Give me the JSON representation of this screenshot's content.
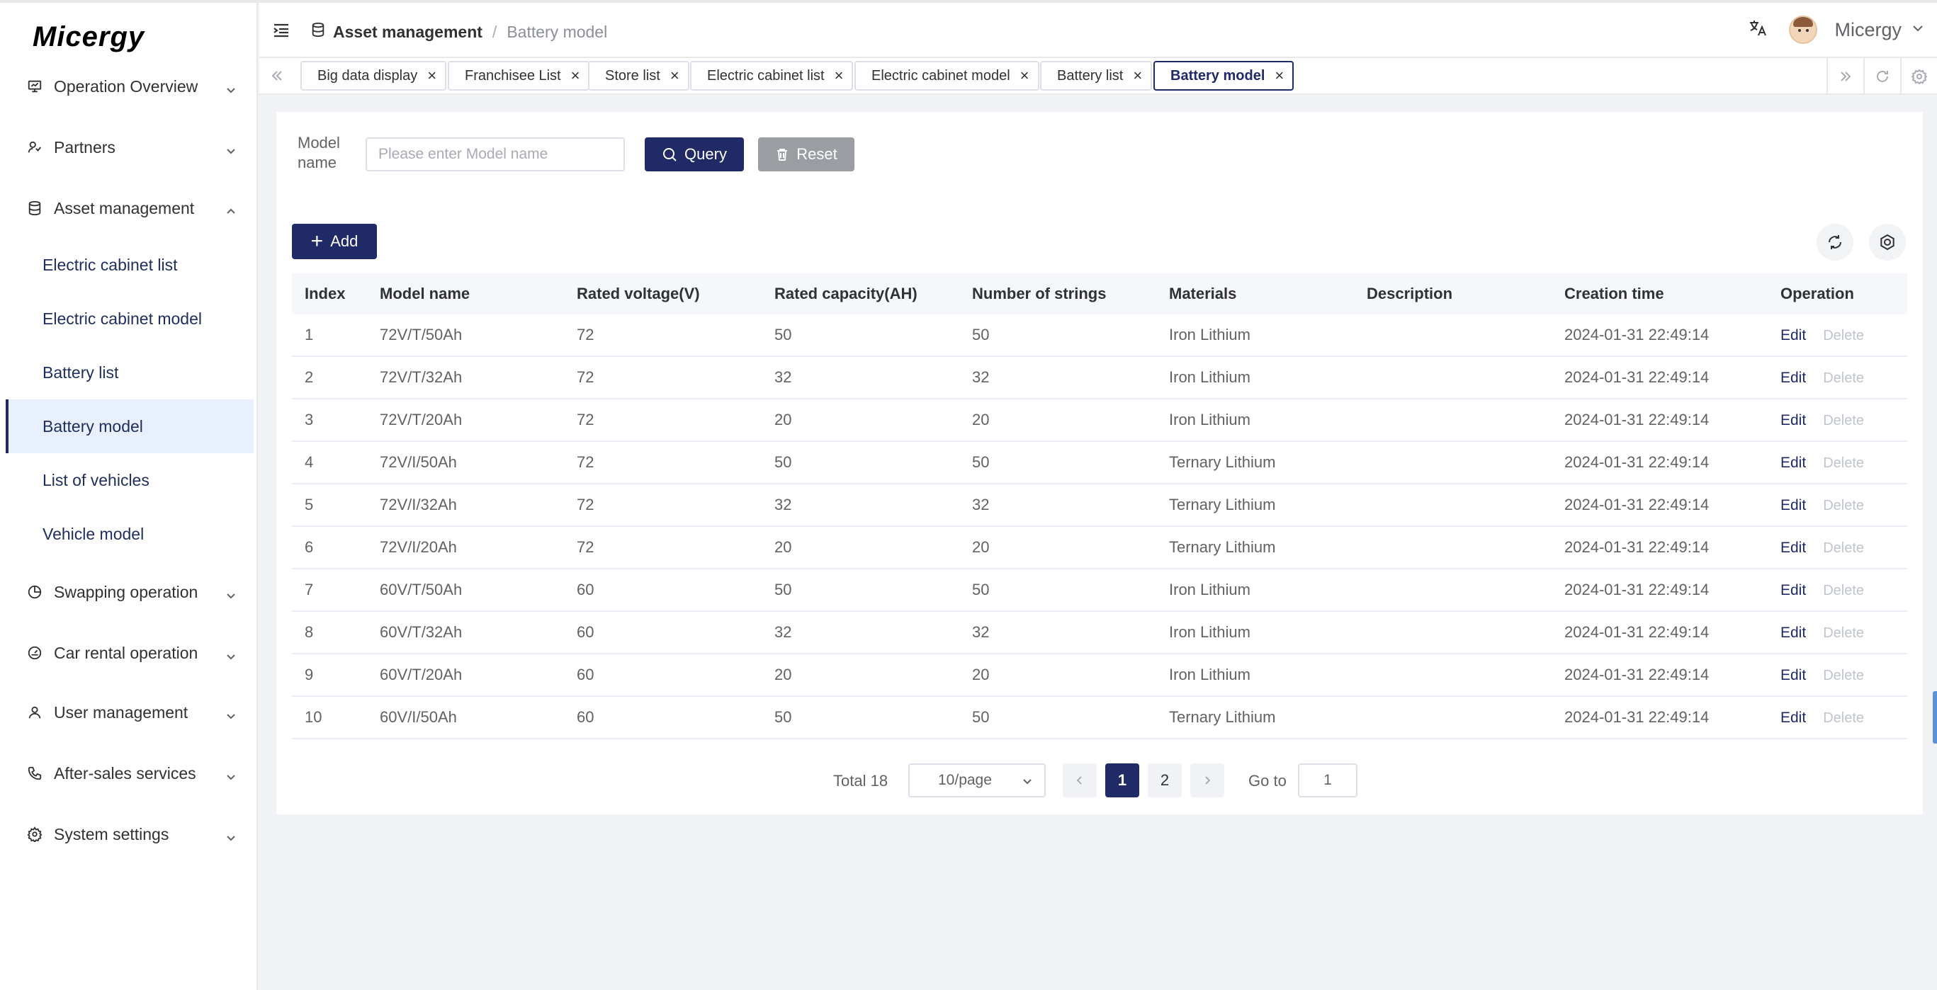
{
  "app": {
    "logo": "Micergy",
    "user_name": "Micergy"
  },
  "sidebar": {
    "items": [
      {
        "label": "Operation Overview",
        "icon": "monitor-icon"
      },
      {
        "label": "Partners",
        "icon": "partners-icon"
      },
      {
        "label": "Asset management",
        "icon": "database-icon"
      },
      {
        "label": "Swapping operation",
        "icon": "pie-chart-icon"
      },
      {
        "label": "Car rental operation",
        "icon": "gauge-icon"
      },
      {
        "label": "User management",
        "icon": "user-icon"
      },
      {
        "label": "After-sales services",
        "icon": "phone-icon"
      },
      {
        "label": "System settings",
        "icon": "gear-icon"
      }
    ],
    "sub_items": [
      {
        "label": "Electric cabinet list"
      },
      {
        "label": "Electric cabinet model"
      },
      {
        "label": "Battery list"
      },
      {
        "label": "Battery model"
      },
      {
        "label": "List of vehicles"
      },
      {
        "label": "Vehicle model"
      }
    ]
  },
  "header": {
    "breadcrumb": {
      "parent": "Asset management",
      "separator": "/",
      "current": "Battery model"
    }
  },
  "tabs": [
    {
      "label": "Big data display"
    },
    {
      "label": "Franchisee List"
    },
    {
      "label": "Store list"
    },
    {
      "label": "Electric cabinet list"
    },
    {
      "label": "Electric cabinet model"
    },
    {
      "label": "Battery list"
    },
    {
      "label": "Battery model"
    }
  ],
  "search": {
    "label": "Model name",
    "placeholder": "Please enter Model name",
    "query_label": "Query",
    "reset_label": "Reset"
  },
  "toolbar": {
    "add_label": "Add"
  },
  "table": {
    "columns": [
      "Index",
      "Model name",
      "Rated voltage(V)",
      "Rated capacity(AH)",
      "Number of strings",
      "Materials",
      "Description",
      "Creation time",
      "Operation"
    ],
    "edit_label": "Edit",
    "delete_label": "Delete",
    "rows": [
      [
        "1",
        "72V/T/50Ah",
        "72",
        "50",
        "50",
        "Iron Lithium",
        "",
        "2024-01-31 22:49:14"
      ],
      [
        "2",
        "72V/T/32Ah",
        "72",
        "32",
        "32",
        "Iron Lithium",
        "",
        "2024-01-31 22:49:14"
      ],
      [
        "3",
        "72V/T/20Ah",
        "72",
        "20",
        "20",
        "Iron Lithium",
        "",
        "2024-01-31 22:49:14"
      ],
      [
        "4",
        "72V/I/50Ah",
        "72",
        "50",
        "50",
        "Ternary Lithium",
        "",
        "2024-01-31 22:49:14"
      ],
      [
        "5",
        "72V/I/32Ah",
        "72",
        "32",
        "32",
        "Ternary Lithium",
        "",
        "2024-01-31 22:49:14"
      ],
      [
        "6",
        "72V/I/20Ah",
        "72",
        "20",
        "20",
        "Ternary Lithium",
        "",
        "2024-01-31 22:49:14"
      ],
      [
        "7",
        "60V/T/50Ah",
        "60",
        "50",
        "50",
        "Iron Lithium",
        "",
        "2024-01-31 22:49:14"
      ],
      [
        "8",
        "60V/T/32Ah",
        "60",
        "32",
        "32",
        "Iron Lithium",
        "",
        "2024-01-31 22:49:14"
      ],
      [
        "9",
        "60V/T/20Ah",
        "60",
        "20",
        "20",
        "Iron Lithium",
        "",
        "2024-01-31 22:49:14"
      ],
      [
        "10",
        "60V/I/50Ah",
        "60",
        "50",
        "50",
        "Ternary Lithium",
        "",
        "2024-01-31 22:49:14"
      ]
    ]
  },
  "pagination": {
    "total_label": "Total 18",
    "page_size": "10/page",
    "pages": [
      "1",
      "2"
    ],
    "current_page": "1",
    "goto_label": "Go to",
    "goto_value": "1"
  },
  "colors": {
    "primary": "#1f2a66",
    "active_bg": "#e8f0fd",
    "reset_btn": "#909399"
  }
}
